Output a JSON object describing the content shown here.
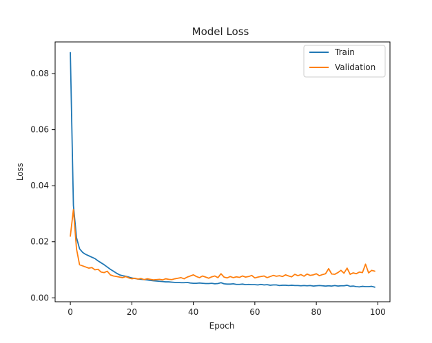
{
  "chart_data": {
    "type": "line",
    "title": "Model Loss",
    "xlabel": "Epoch",
    "ylabel": "Loss",
    "xlim": [
      -4.95,
      103.95
    ],
    "ylim": [
      -0.0014,
      0.0913
    ],
    "xticks": [
      0,
      20,
      40,
      60,
      80,
      100
    ],
    "xtick_labels": [
      "0",
      "20",
      "40",
      "60",
      "80",
      "100"
    ],
    "yticks": [
      0.0,
      0.02,
      0.04,
      0.06,
      0.08
    ],
    "ytick_labels": [
      "0.00",
      "0.02",
      "0.04",
      "0.06",
      "0.08"
    ],
    "grid": false,
    "legend_position": "top-right",
    "series": [
      {
        "name": "Train",
        "color": "#1f77b4",
        "x": [
          0,
          1,
          2,
          3,
          4,
          5,
          6,
          7,
          8,
          9,
          10,
          11,
          12,
          13,
          14,
          15,
          16,
          17,
          18,
          19,
          20,
          21,
          22,
          23,
          24,
          25,
          26,
          27,
          28,
          29,
          30,
          31,
          32,
          33,
          34,
          35,
          36,
          37,
          38,
          39,
          40,
          41,
          42,
          43,
          44,
          45,
          46,
          47,
          48,
          49,
          50,
          51,
          52,
          53,
          54,
          55,
          56,
          57,
          58,
          59,
          60,
          61,
          62,
          63,
          64,
          65,
          66,
          67,
          68,
          69,
          70,
          71,
          72,
          73,
          74,
          75,
          76,
          77,
          78,
          79,
          80,
          81,
          82,
          83,
          84,
          85,
          86,
          87,
          88,
          89,
          90,
          91,
          92,
          93,
          94,
          95,
          96,
          97,
          98,
          99
        ],
        "values": [
          0.0875,
          0.033,
          0.0215,
          0.0175,
          0.0162,
          0.0155,
          0.015,
          0.0145,
          0.014,
          0.0132,
          0.0125,
          0.0118,
          0.011,
          0.0102,
          0.0095,
          0.0088,
          0.0082,
          0.0079,
          0.0077,
          0.0074,
          0.0071,
          0.0069,
          0.0067,
          0.0066,
          0.0065,
          0.0064,
          0.0062,
          0.0061,
          0.006,
          0.0059,
          0.0058,
          0.0057,
          0.0057,
          0.0056,
          0.0055,
          0.0055,
          0.0054,
          0.0054,
          0.0055,
          0.0053,
          0.0052,
          0.0052,
          0.0053,
          0.0052,
          0.0051,
          0.0051,
          0.0052,
          0.005,
          0.0051,
          0.0054,
          0.005,
          0.0049,
          0.0049,
          0.005,
          0.0048,
          0.0048,
          0.0049,
          0.0047,
          0.0048,
          0.0047,
          0.0047,
          0.0046,
          0.0048,
          0.0046,
          0.0047,
          0.0045,
          0.0046,
          0.0046,
          0.0044,
          0.0045,
          0.0045,
          0.0044,
          0.0045,
          0.0044,
          0.0044,
          0.0043,
          0.0044,
          0.0043,
          0.0044,
          0.0042,
          0.0043,
          0.0044,
          0.0043,
          0.0042,
          0.0043,
          0.0042,
          0.0044,
          0.0042,
          0.0043,
          0.0043,
          0.0045,
          0.0041,
          0.0042,
          0.004,
          0.0039,
          0.0041,
          0.004,
          0.004,
          0.0041,
          0.0038
        ]
      },
      {
        "name": "Validation",
        "color": "#ff7f0e",
        "x": [
          0,
          1,
          2,
          3,
          4,
          5,
          6,
          7,
          8,
          9,
          10,
          11,
          12,
          13,
          14,
          15,
          16,
          17,
          18,
          19,
          20,
          21,
          22,
          23,
          24,
          25,
          26,
          27,
          28,
          29,
          30,
          31,
          32,
          33,
          34,
          35,
          36,
          37,
          38,
          39,
          40,
          41,
          42,
          43,
          44,
          45,
          46,
          47,
          48,
          49,
          50,
          51,
          52,
          53,
          54,
          55,
          56,
          57,
          58,
          59,
          60,
          61,
          62,
          63,
          64,
          65,
          66,
          67,
          68,
          69,
          70,
          71,
          72,
          73,
          74,
          75,
          76,
          77,
          78,
          79,
          80,
          81,
          82,
          83,
          84,
          85,
          86,
          87,
          88,
          89,
          90,
          91,
          92,
          93,
          94,
          95,
          96,
          97,
          98,
          99
        ],
        "values": [
          0.022,
          0.0315,
          0.0175,
          0.0118,
          0.0114,
          0.011,
          0.0106,
          0.0108,
          0.01,
          0.0102,
          0.0092,
          0.009,
          0.0095,
          0.0082,
          0.0078,
          0.0076,
          0.0074,
          0.0072,
          0.0076,
          0.0071,
          0.0068,
          0.007,
          0.0067,
          0.0069,
          0.0065,
          0.0068,
          0.0066,
          0.0064,
          0.0065,
          0.0066,
          0.0064,
          0.0068,
          0.0066,
          0.0065,
          0.0068,
          0.007,
          0.0072,
          0.0068,
          0.0074,
          0.0078,
          0.0082,
          0.0076,
          0.0072,
          0.0078,
          0.0074,
          0.007,
          0.0075,
          0.0078,
          0.0072,
          0.0086,
          0.0074,
          0.0071,
          0.0076,
          0.0072,
          0.0075,
          0.0073,
          0.0078,
          0.0074,
          0.0076,
          0.008,
          0.0071,
          0.0074,
          0.0076,
          0.0078,
          0.0072,
          0.0076,
          0.008,
          0.0077,
          0.0079,
          0.0076,
          0.0082,
          0.0078,
          0.0075,
          0.0084,
          0.0079,
          0.0083,
          0.0077,
          0.0085,
          0.008,
          0.0082,
          0.0086,
          0.0079,
          0.0083,
          0.0086,
          0.0104,
          0.0085,
          0.0084,
          0.009,
          0.0098,
          0.0088,
          0.0106,
          0.0084,
          0.0089,
          0.0086,
          0.0092,
          0.009,
          0.012,
          0.0089,
          0.0098,
          0.0095
        ]
      }
    ]
  }
}
